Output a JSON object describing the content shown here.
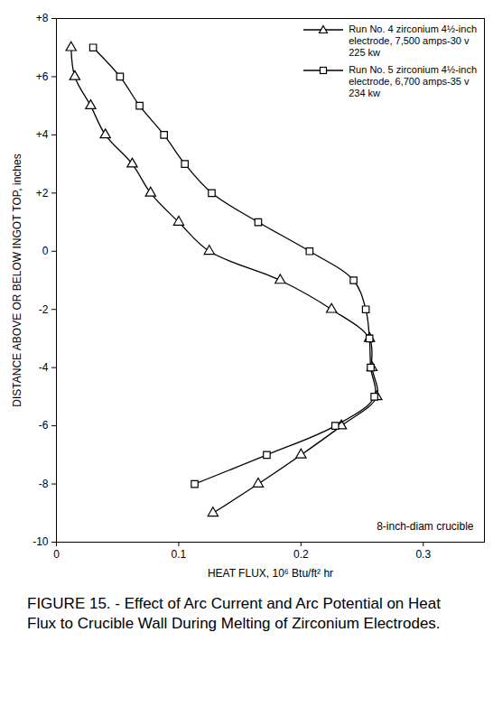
{
  "chart_data": {
    "type": "line",
    "title": "FIGURE 15. - Effect of Arc Current and Arc Potential on Heat Flux to Crucible Wall During Melting of Zirconium Electrodes.",
    "x_label": "HEAT FLUX, 10⁶ Btu/ft² hr",
    "y_label": "DISTANCE ABOVE OR BELOW INGOT TOP, inches",
    "annotations": [
      "8-inch-diam crucible"
    ],
    "xlim": [
      0,
      0.35
    ],
    "xticks": [
      0,
      0.1,
      0.2,
      0.3
    ],
    "ylim": [
      -10,
      8
    ],
    "yticks": [
      {
        "value": 8,
        "label": "+8"
      },
      {
        "value": 6,
        "label": "+6"
      },
      {
        "value": 4,
        "label": "+4"
      },
      {
        "value": 2,
        "label": "+2"
      },
      0,
      -2,
      -4,
      -6,
      -8,
      -10
    ],
    "grid": false,
    "legend": "top-right",
    "series": [
      {
        "name": "Run No. 4 zirconium 4½-inch\nelectrode, 7,500 amps-30 v\n225 kw",
        "color": "#000000",
        "marker": "triangle",
        "line_style": "solid",
        "x": [
          0.012,
          0.015,
          0.028,
          0.04,
          0.062,
          0.077,
          0.1,
          0.125,
          0.183,
          0.225,
          0.256,
          0.258,
          0.262,
          0.233,
          0.2,
          0.165,
          0.128
        ],
        "values": [
          7,
          6,
          5,
          4,
          3,
          2,
          1,
          0,
          -1,
          -2,
          -3,
          -4,
          -5,
          -6,
          -7,
          -8,
          -9
        ]
      },
      {
        "name": "Run No. 5 zirconium 4½-inch\nelectrode, 6,700 amps-35 v\n234 kw",
        "color": "#000000",
        "marker": "square",
        "line_style": "solid",
        "x": [
          0.03,
          0.052,
          0.068,
          0.088,
          0.105,
          0.127,
          0.165,
          0.207,
          0.243,
          0.253,
          0.256,
          0.257,
          0.26,
          0.228,
          0.172,
          0.113
        ],
        "values": [
          7,
          6,
          5,
          4,
          3,
          2,
          1,
          0,
          -1,
          -2,
          -3,
          -4,
          -5,
          -6,
          -7,
          -8
        ]
      }
    ]
  }
}
